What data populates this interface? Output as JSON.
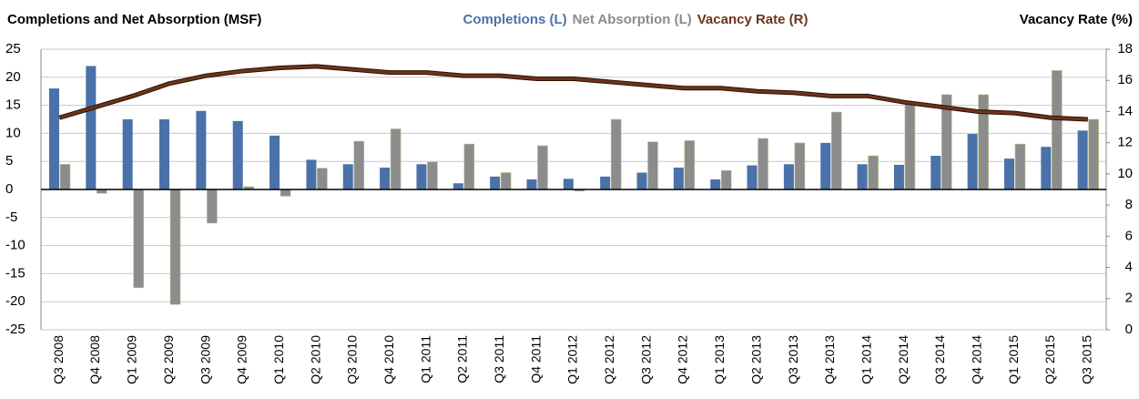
{
  "chart_data": {
    "type": "bar-line",
    "title": "Completions and Net Absorption (MSF)",
    "y2_title": "Vacancy Rate (%)",
    "legend": "top",
    "grid": true,
    "categories": [
      "Q3 2008",
      "Q4 2008",
      "Q1 2009",
      "Q2 2009",
      "Q3 2009",
      "Q4 2009",
      "Q1 2010",
      "Q2 2010",
      "Q3 2010",
      "Q4 2010",
      "Q1 2011",
      "Q2 2011",
      "Q3 2011",
      "Q4 2011",
      "Q1 2012",
      "Q2 2012",
      "Q3 2012",
      "Q4 2012",
      "Q1 2013",
      "Q2 2013",
      "Q3 2013",
      "Q4 2013",
      "Q1 2014",
      "Q2 2014",
      "Q3 2014",
      "Q4 2014",
      "Q1 2015",
      "Q2 2015",
      "Q3 2015"
    ],
    "series": [
      {
        "name": "Completions (L)",
        "color": "#4a72a8",
        "type": "bar",
        "axis": "y",
        "values": [
          18,
          22,
          12.5,
          12.5,
          14,
          12.2,
          9.6,
          5.3,
          4.5,
          3.9,
          4.5,
          1.1,
          2.3,
          1.8,
          1.9,
          2.3,
          3,
          3.9,
          1.8,
          4.3,
          4.5,
          8.3,
          4.5,
          4.4,
          6,
          9.9,
          5.5,
          7.6,
          10.5
        ]
      },
      {
        "name": "Net Absorption (L)",
        "color": "#8c8c8c",
        "type": "bar",
        "axis": "y",
        "values": [
          4.5,
          -0.7,
          -17.5,
          -20.5,
          -6,
          0.5,
          -1.2,
          3.8,
          8.6,
          10.8,
          4.9,
          8.1,
          3,
          7.8,
          -0.3,
          12.5,
          8.5,
          8.7,
          3.4,
          9.1,
          8.3,
          13.8,
          6,
          15.2,
          16.9,
          16.9,
          8.1,
          21.2,
          12.5
        ]
      },
      {
        "name": "Vacancy Rate (R)",
        "color": "#6b3518",
        "type": "line",
        "axis": "y2",
        "values": [
          13.6,
          14.3,
          15.0,
          15.8,
          16.3,
          16.6,
          16.8,
          16.9,
          16.7,
          16.5,
          16.5,
          16.3,
          16.3,
          16.1,
          16.1,
          15.9,
          15.7,
          15.5,
          15.5,
          15.3,
          15.2,
          15.0,
          15.0,
          14.6,
          14.3,
          14.0,
          13.9,
          13.6,
          13.5
        ]
      }
    ],
    "ylim": [
      -25,
      25
    ],
    "yticks": [
      -25,
      -20,
      -15,
      -10,
      -5,
      0,
      5,
      10,
      15,
      20,
      25
    ],
    "y2lim": [
      0,
      18
    ],
    "y2ticks": [
      0,
      2,
      4,
      6,
      8,
      10,
      12,
      14,
      16,
      18
    ]
  }
}
